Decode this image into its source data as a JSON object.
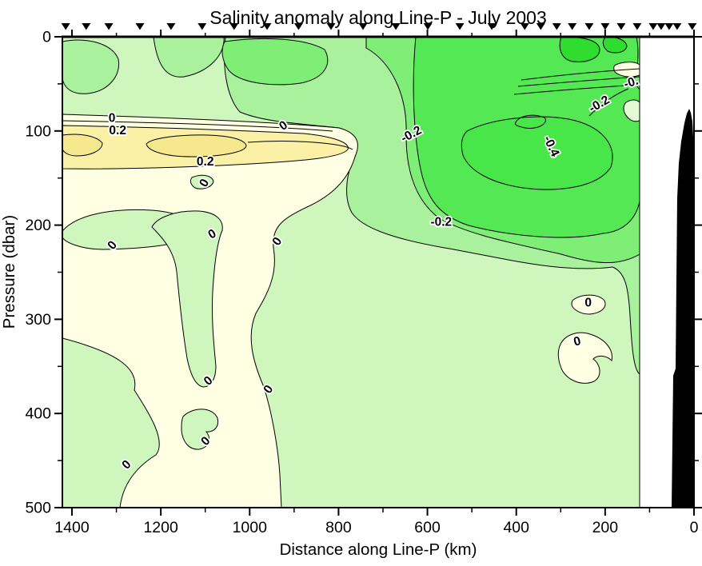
{
  "title": "Salinity anomaly along Line-P - July 2003",
  "axes": {
    "x": {
      "label": "Distance along Line-P (km)",
      "major_ticks": [
        1400,
        1200,
        1000,
        800,
        600,
        400,
        200,
        0
      ],
      "minor_tick_step_km": 100,
      "range_km": [
        1420,
        0
      ],
      "reversed": true
    },
    "y": {
      "label": "Pressure (dbar)",
      "major_ticks": [
        0,
        100,
        200,
        300,
        400,
        500
      ],
      "minor_tick_step_dbar": 50,
      "range_dbar": [
        0,
        500
      ]
    }
  },
  "chart_data": {
    "type": "heatmap",
    "subtype": "filled-contour-ocean-section",
    "title": "Salinity anomaly along Line-P - July 2003",
    "xlabel": "Distance along Line-P (km)",
    "ylabel": "Pressure (dbar)",
    "x_range_km": [
      1420,
      0
    ],
    "x_axis_reversed": true,
    "y_range_dbar": [
      0,
      500
    ],
    "contour_levels_labeled": [
      -0.4,
      -0.2,
      0,
      0.2
    ],
    "positive_anomaly_colors": [
      "#ffffe3",
      "#faf1a6",
      "#f6e88e"
    ],
    "negative_anomaly_colors": [
      "#e4fad6",
      "#cff6bd",
      "#aaf19e",
      "#7fee76",
      "#55e855",
      "#2edd2e"
    ],
    "station_markers_km": [
      1414,
      1368,
      1317,
      1247,
      1177,
      1107,
      1035,
      961,
      890,
      817,
      745,
      671,
      599,
      527,
      455,
      381,
      345,
      309,
      274,
      236,
      200,
      164,
      128,
      92,
      74,
      56,
      38,
      4
    ],
    "contour_annotations": [
      {
        "text": "0",
        "km": 1310,
        "dbar": 86,
        "rot": 0
      },
      {
        "text": "0.2",
        "km": 1297,
        "dbar": 99,
        "rot": 0
      },
      {
        "text": "0",
        "km": 925,
        "dbar": 94,
        "rot": -35
      },
      {
        "text": "0.2",
        "km": 1100,
        "dbar": 132,
        "rot": 0
      },
      {
        "text": "0",
        "km": 1103,
        "dbar": 155,
        "rot": -60
      },
      {
        "text": "-0.2",
        "km": 637,
        "dbar": 103,
        "rot": -28
      },
      {
        "text": "-0.4",
        "km": 320,
        "dbar": 116,
        "rot": 65
      },
      {
        "text": "-0.2",
        "km": 214,
        "dbar": 71,
        "rot": -30
      },
      {
        "text": "-0.",
        "km": 142,
        "dbar": 48,
        "rot": -18
      },
      {
        "text": "-0.2",
        "km": 569,
        "dbar": 196,
        "rot": 0
      },
      {
        "text": "0",
        "km": 1310,
        "dbar": 221,
        "rot": -50
      },
      {
        "text": "0",
        "km": 1085,
        "dbar": 209,
        "rot": -30
      },
      {
        "text": "0",
        "km": 939,
        "dbar": 217,
        "rot": -55
      },
      {
        "text": "0",
        "km": 1094,
        "dbar": 365,
        "rot": -40
      },
      {
        "text": "0",
        "km": 959,
        "dbar": 374,
        "rot": -55
      },
      {
        "text": "0",
        "km": 1100,
        "dbar": 429,
        "rot": -45
      },
      {
        "text": "0",
        "km": 1278,
        "dbar": 454,
        "rot": -45
      },
      {
        "text": "0",
        "km": 238,
        "dbar": 282,
        "rot": 0
      },
      {
        "text": "0",
        "km": 263,
        "dbar": 323,
        "rot": -15
      }
    ],
    "features": [
      "Positive salinity anomaly band (>0.2) near 100 dbar west of ~900 km",
      "Fresh anomaly core (<-0.4) between 100-230 dbar around 250-500 km",
      "Strong fresh anomaly greens in upper 250 dbar east of ~800 km",
      "Black seafloor bathymetry profile shoaling toward the coast at 0 km",
      "Station positions marked by downward triangles along the top axis"
    ]
  },
  "palette": {
    "background": "#ffffff",
    "axis": "#000000",
    "bathymetry": "#000000",
    "base_green": "#cff6bd",
    "green_pale": "#e4fad6",
    "green_light": "#aaf19e",
    "green_mid": "#7fee76",
    "green_deep": "#55e855",
    "green_deeper": "#49e649",
    "green_dark": "#2edd2e",
    "cream": "#ffffe3",
    "yellow": "#faf1a6",
    "yellow_deep": "#f6e88e"
  }
}
